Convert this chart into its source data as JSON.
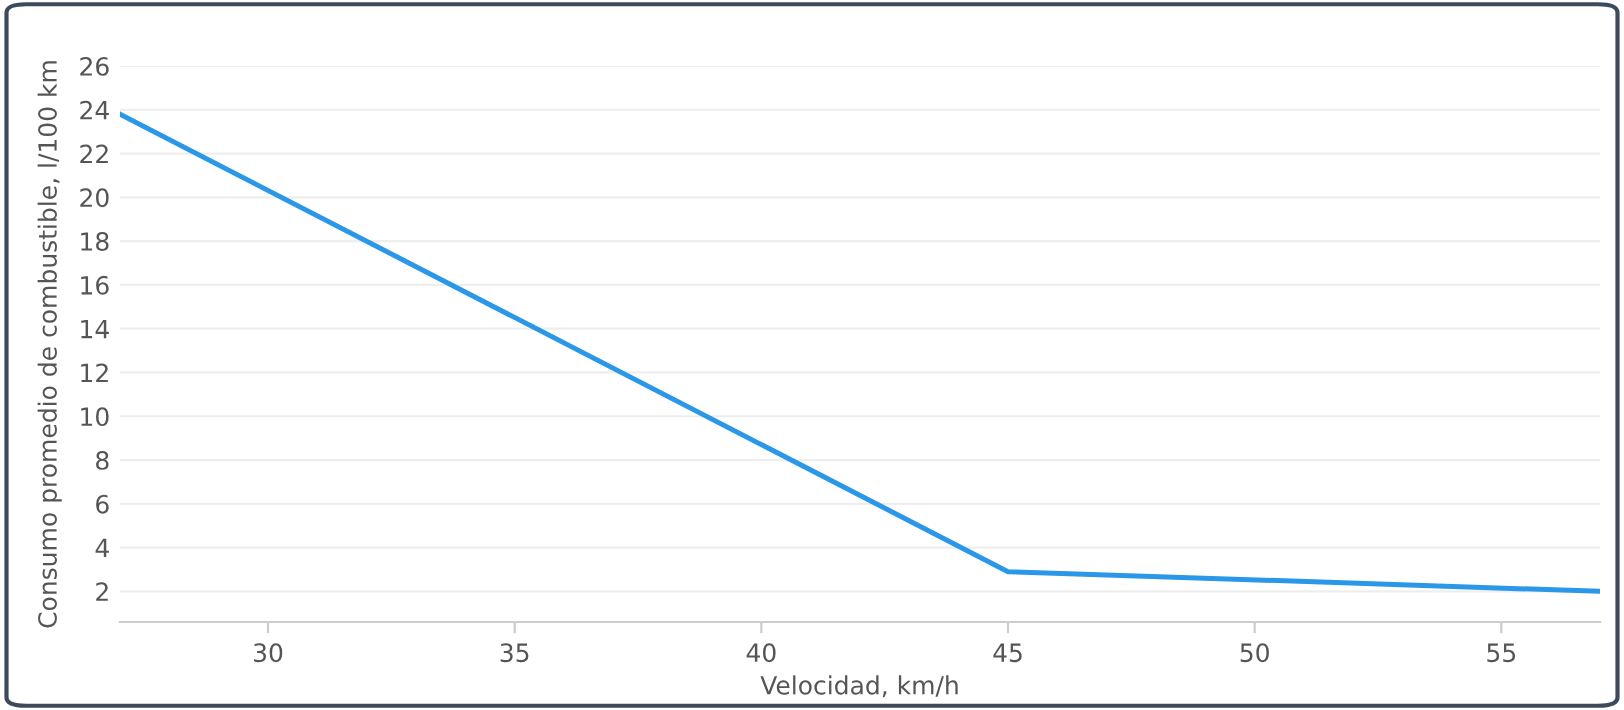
{
  "chart_data": {
    "type": "line",
    "xlabel": "Velocidad, km/h",
    "ylabel": "Consumo promedio de combustible, l/100 km",
    "x": [
      27,
      45,
      57
    ],
    "series": [
      {
        "color": "#2b97e8",
        "values": [
          23.8,
          2.9,
          2.0
        ]
      }
    ],
    "xlim": [
      27,
      57
    ],
    "ylim": [
      0.6,
      26
    ],
    "xticks": [
      30,
      35,
      40,
      45,
      50,
      55
    ],
    "yticks": [
      2,
      4,
      6,
      8,
      10,
      12,
      14,
      16,
      18,
      20,
      22,
      24,
      26
    ],
    "grid": "y",
    "legend": false,
    "marker": "none",
    "line_style": "solid"
  }
}
